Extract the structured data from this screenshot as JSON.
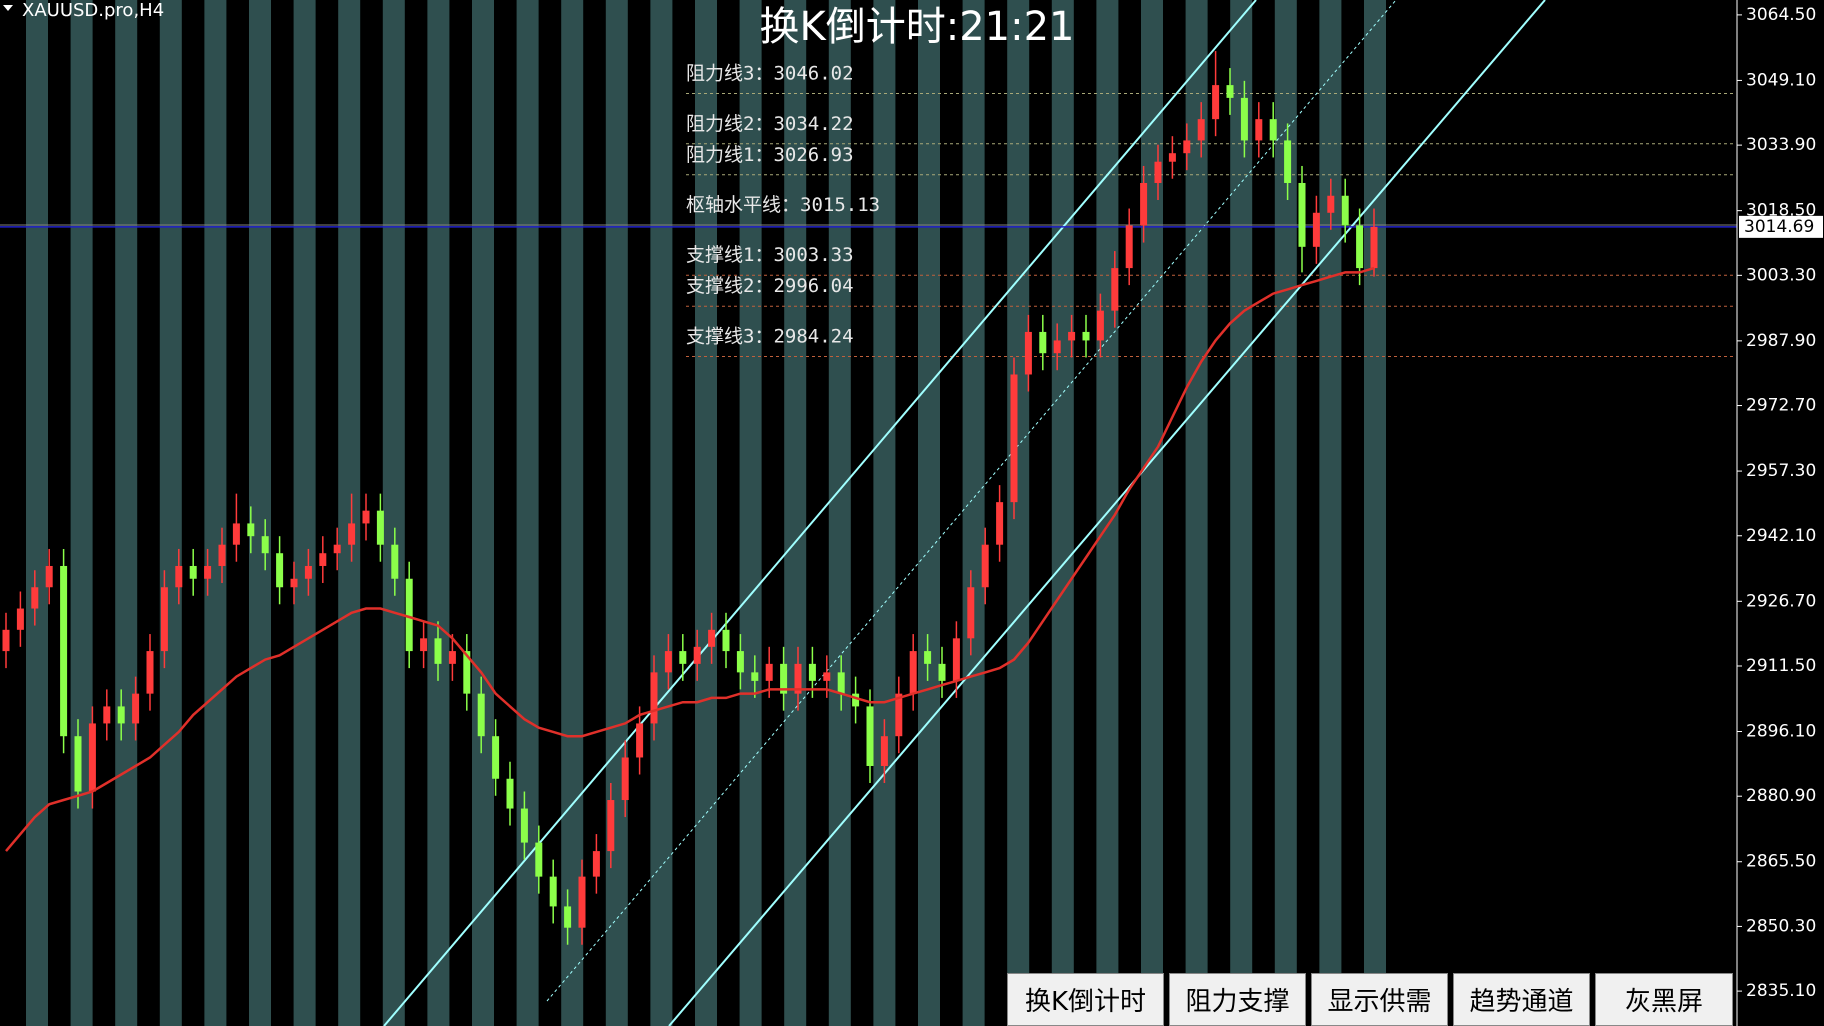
{
  "symbol": "XAUUSD.pro,H4",
  "buttons": [
    "换K倒计时",
    "阻力支撑",
    "显示供需",
    "趋势通道",
    "灰黑屏"
  ],
  "chart_data": {
    "type": "candlestick",
    "title": "换K倒计时:21:21",
    "ylim": [
      2826.9,
      3068.0
    ],
    "yticks": [
      {
        "value": 3064.5,
        "label": "3064.50"
      },
      {
        "value": 3049.1,
        "label": "3049.10"
      },
      {
        "value": 3033.9,
        "label": "3033.90"
      },
      {
        "value": 3018.5,
        "label": "3018.50"
      },
      {
        "value": 3003.3,
        "label": "3003.30"
      },
      {
        "value": 2987.9,
        "label": "2987.90"
      },
      {
        "value": 2972.7,
        "label": "2972.70"
      },
      {
        "value": 2957.3,
        "label": "2957.30"
      },
      {
        "value": 2942.1,
        "label": "2942.10"
      },
      {
        "value": 2926.7,
        "label": "2926.70"
      },
      {
        "value": 2911.5,
        "label": "2911.50"
      },
      {
        "value": 2896.1,
        "label": "2896.10"
      },
      {
        "value": 2880.9,
        "label": "2880.90"
      },
      {
        "value": 2865.5,
        "label": "2865.50"
      },
      {
        "value": 2850.3,
        "label": "2850.30"
      },
      {
        "value": 2835.1,
        "label": "2835.10"
      }
    ],
    "up_color": "#ff3b3b",
    "down_color": "#8cff4a",
    "open": [
      2915,
      2920,
      2925,
      2930,
      2935,
      2895,
      2882,
      2898,
      2902,
      2898,
      2905,
      2915,
      2930,
      2935,
      2932,
      2935,
      2940,
      2945,
      2942,
      2938,
      2930,
      2932,
      2935,
      2938,
      2940,
      2945,
      2948,
      2940,
      2932,
      2915,
      2918,
      2912,
      2915,
      2905,
      2895,
      2885,
      2878,
      2870,
      2862,
      2855,
      2850,
      2862,
      2868,
      2880,
      2890,
      2898,
      2910,
      2915,
      2912,
      2916,
      2920,
      2915,
      2910,
      2908,
      2912,
      2905,
      2912,
      2908,
      2910,
      2905,
      2902,
      2888,
      2895,
      2905,
      2915,
      2912,
      2908,
      2918,
      2930,
      2940,
      2950,
      2980,
      2990,
      2985,
      2988,
      2990,
      2988,
      2995,
      3005,
      3015,
      3025,
      3030,
      3032,
      3035,
      3040,
      3048,
      3045,
      3035,
      3040,
      3035,
      3025,
      3010,
      3018,
      3022,
      3015,
      3005
    ],
    "high": [
      2924,
      2929,
      2934,
      2939,
      2939,
      2899,
      2902,
      2906,
      2906,
      2909,
      2919,
      2934,
      2939,
      2939,
      2939,
      2944,
      2952,
      2949,
      2946,
      2942,
      2936,
      2939,
      2942,
      2944,
      2952,
      2952,
      2952,
      2944,
      2936,
      2922,
      2922,
      2919,
      2919,
      2909,
      2899,
      2889,
      2882,
      2874,
      2866,
      2859,
      2866,
      2872,
      2884,
      2894,
      2902,
      2914,
      2919,
      2919,
      2920,
      2924,
      2924,
      2919,
      2914,
      2916,
      2916,
      2916,
      2916,
      2914,
      2914,
      2909,
      2906,
      2899,
      2909,
      2919,
      2919,
      2916,
      2922,
      2934,
      2944,
      2954,
      2984,
      2994,
      2994,
      2992,
      2994,
      2994,
      2999,
      3009,
      3019,
      3029,
      3034,
      3036,
      3039,
      3044,
      3056,
      3052,
      3049,
      3044,
      3044,
      3039,
      3029,
      3022,
      3026,
      3026,
      3019,
      3019
    ],
    "low": [
      2911,
      2916,
      2921,
      2926,
      2891,
      2878,
      2878,
      2894,
      2894,
      2894,
      2901,
      2911,
      2926,
      2928,
      2928,
      2931,
      2936,
      2938,
      2934,
      2926,
      2926,
      2928,
      2931,
      2934,
      2936,
      2941,
      2936,
      2928,
      2911,
      2911,
      2908,
      2908,
      2901,
      2891,
      2881,
      2874,
      2866,
      2858,
      2851,
      2846,
      2846,
      2858,
      2864,
      2876,
      2886,
      2894,
      2906,
      2908,
      2908,
      2912,
      2911,
      2906,
      2904,
      2904,
      2901,
      2901,
      2904,
      2904,
      2901,
      2898,
      2884,
      2884,
      2891,
      2901,
      2908,
      2904,
      2904,
      2914,
      2926,
      2936,
      2946,
      2976,
      2981,
      2981,
      2984,
      2984,
      2984,
      2991,
      3001,
      3011,
      3021,
      3026,
      3028,
      3031,
      3036,
      3041,
      3031,
      3031,
      3031,
      3021,
      3004,
      3006,
      3014,
      3011,
      3001,
      3003
    ],
    "close": [
      2920,
      2925,
      2930,
      2935,
      2895,
      2882,
      2898,
      2902,
      2898,
      2905,
      2915,
      2930,
      2935,
      2932,
      2935,
      2940,
      2945,
      2942,
      2938,
      2930,
      2932,
      2935,
      2938,
      2940,
      2945,
      2948,
      2940,
      2932,
      2915,
      2918,
      2912,
      2915,
      2905,
      2895,
      2885,
      2878,
      2870,
      2862,
      2855,
      2850,
      2862,
      2868,
      2880,
      2890,
      2898,
      2910,
      2915,
      2912,
      2916,
      2920,
      2915,
      2910,
      2908,
      2912,
      2905,
      2912,
      2908,
      2910,
      2905,
      2902,
      2888,
      2895,
      2905,
      2915,
      2912,
      2908,
      2918,
      2930,
      2940,
      2950,
      2980,
      2990,
      2985,
      2988,
      2990,
      2988,
      2995,
      3005,
      3015,
      3025,
      3030,
      3032,
      3035,
      3040,
      3048,
      3045,
      3035,
      3040,
      3035,
      3025,
      3010,
      3018,
      3022,
      3015,
      3005,
      3014.69
    ],
    "ma": {
      "color": "#e0302a",
      "values": [
        2868,
        2872,
        2876,
        2879,
        2880,
        2881,
        2882,
        2884,
        2886,
        2888,
        2890,
        2893,
        2896,
        2900,
        2903,
        2906,
        2909,
        2911,
        2913,
        2914,
        2916,
        2918,
        2920,
        2922,
        2924,
        2925,
        2925,
        2924,
        2923,
        2922,
        2921,
        2918,
        2914,
        2910,
        2905,
        2902,
        2899,
        2897,
        2896,
        2895,
        2895,
        2896,
        2897,
        2898,
        2900,
        2901,
        2902,
        2903,
        2903,
        2904,
        2904,
        2905,
        2905,
        2906,
        2906,
        2906,
        2906,
        2906,
        2905,
        2904,
        2903,
        2903,
        2904,
        2905,
        2906,
        2907,
        2908,
        2909,
        2910,
        2911,
        2913,
        2917,
        2922,
        2927,
        2932,
        2937,
        2942,
        2947,
        2953,
        2958,
        2963,
        2970,
        2977,
        2983,
        2988,
        2992,
        2995,
        2997,
        2999,
        3000,
        3001,
        3002,
        3003,
        3004,
        3004,
        3005
      ]
    },
    "levels": [
      {
        "label": "阻力线3：",
        "value": 3046.02,
        "color": "#a8a878"
      },
      {
        "label": "阻力线2：",
        "value": 3034.22,
        "color": "#a8a878"
      },
      {
        "label": "阻力线1：",
        "value": 3026.93,
        "color": "#a8a878"
      },
      {
        "label": "枢轴水平线：",
        "value": 3015.13,
        "color": "#808080"
      },
      {
        "label": "支撑线1：",
        "value": 3003.33,
        "color": "#c0603c"
      },
      {
        "label": "支撑线2：",
        "value": 2996.04,
        "color": "#c0603c"
      },
      {
        "label": "支撑线3：",
        "value": 2984.24,
        "color": "#c0603c"
      }
    ],
    "current_price": 3014.69,
    "current_color": "#2020c8"
  }
}
